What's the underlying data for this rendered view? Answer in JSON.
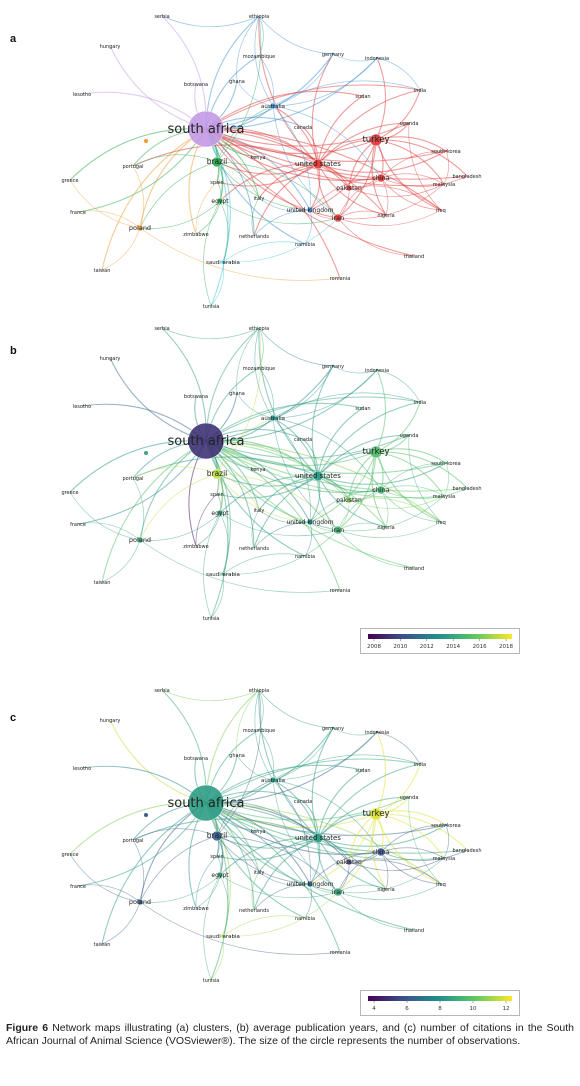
{
  "panels": [
    {
      "label": "a",
      "coloring": "clusters"
    },
    {
      "label": "b",
      "coloring": "average publication year"
    },
    {
      "label": "c",
      "coloring": "number of citations"
    }
  ],
  "countries": [
    {
      "name": "serbia"
    },
    {
      "name": "ethiopia"
    },
    {
      "name": "hungary"
    },
    {
      "name": "mozambique"
    },
    {
      "name": "germany"
    },
    {
      "name": "indonesia"
    },
    {
      "name": "lesotho"
    },
    {
      "name": "botswana"
    },
    {
      "name": "ghana"
    },
    {
      "name": "sudan"
    },
    {
      "name": "india"
    },
    {
      "name": "australia"
    },
    {
      "name": "south africa"
    },
    {
      "name": "canada"
    },
    {
      "name": "uganda"
    },
    {
      "name": "turkey"
    },
    {
      "name": "south korea"
    },
    {
      "name": "brazil"
    },
    {
      "name": "kenya"
    },
    {
      "name": "united states"
    },
    {
      "name": "china"
    },
    {
      "name": "bangladesh"
    },
    {
      "name": "greece"
    },
    {
      "name": "portugal"
    },
    {
      "name": "spain"
    },
    {
      "name": "pakistan"
    },
    {
      "name": "malaysia"
    },
    {
      "name": "egypt"
    },
    {
      "name": "italy"
    },
    {
      "name": "france"
    },
    {
      "name": "united kingdom"
    },
    {
      "name": "iran"
    },
    {
      "name": "nigeria"
    },
    {
      "name": "iraq"
    },
    {
      "name": "poland"
    },
    {
      "name": "zimbabwe"
    },
    {
      "name": "netherlands"
    },
    {
      "name": "namibia"
    },
    {
      "name": "thailand"
    },
    {
      "name": "saudi arabia"
    },
    {
      "name": "taiwan"
    },
    {
      "name": "romania"
    },
    {
      "name": "tunisia"
    }
  ],
  "colorbars": {
    "b": {
      "ticks": [
        "2008",
        "2010",
        "2012",
        "2014",
        "2016",
        "2018"
      ]
    },
    "c": {
      "ticks": [
        "4",
        "6",
        "8",
        "10",
        "12"
      ]
    }
  },
  "caption": {
    "figure_label": "Figure 6",
    "text": " Network maps illustrating (a) clusters, (b) average publication years, and (c) number of citations in the South African Journal of Animal Science (VOSviewer®). The size of the circle represents the number of observations."
  },
  "colors": {
    "cluster_purple": "#c39ae6",
    "cluster_red": "#e03a3a",
    "cluster_green": "#27a84a",
    "cluster_blue": "#3d8fd0",
    "cluster_orange": "#f29a2e",
    "cluster_cyan": "#39c5d4",
    "viridis": [
      "#440154",
      "#3b528b",
      "#21918c",
      "#5ec962",
      "#fde725"
    ]
  }
}
